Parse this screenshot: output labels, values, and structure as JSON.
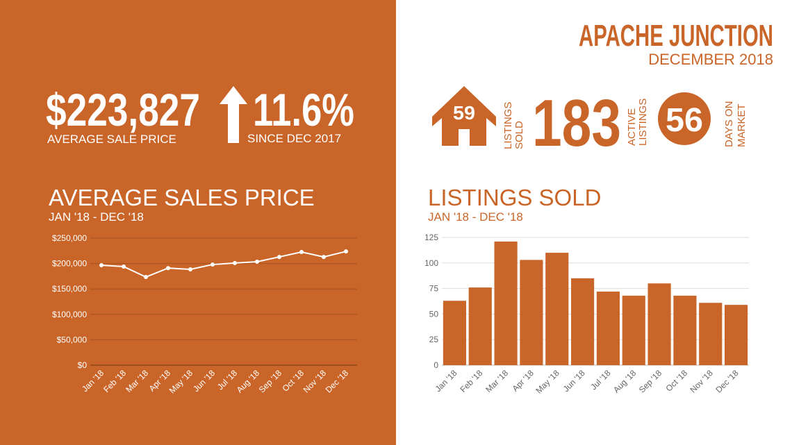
{
  "header": {
    "title": "APACHE JUNCTION",
    "subtitle": "DECEMBER 2018"
  },
  "stats": {
    "price": "$223,827",
    "price_label": "AVERAGE  SALE PRICE",
    "change": "11.6%",
    "change_label": "SINCE DEC 2017",
    "listings_sold": 59,
    "listings_sold_label": [
      "LISTINGS",
      "SOLD"
    ],
    "active": 183,
    "active_label": [
      "ACTIVE",
      "LISTINGS"
    ],
    "days": 56,
    "days_label": [
      "DAYS ON",
      "MARKET"
    ]
  },
  "chart_data": [
    {
      "type": "line",
      "title": "AVERAGE SALES PRICE",
      "subtitle": "JAN '18 - DEC '18",
      "color": "#ffffff",
      "grid": true,
      "categories": [
        "Jan '18",
        "Feb '18",
        "Mar '18",
        "Apr '18",
        "May '18",
        "Jun '18",
        "Jul '18",
        "Aug '18",
        "Sep '18",
        "Oct '18",
        "Nov '18",
        "Dec '18"
      ],
      "values": [
        196700,
        194000,
        173500,
        191000,
        188500,
        198000,
        201000,
        203500,
        213000,
        222700,
        213000,
        223827
      ],
      "ylim": [
        0,
        250000
      ],
      "yticks": [
        {
          "value": 0,
          "label": "$0"
        },
        {
          "value": 50000,
          "label": "$50,000"
        },
        {
          "value": 100000,
          "label": "$100,000"
        },
        {
          "value": 150000,
          "label": "$150,000"
        },
        {
          "value": 200000,
          "label": "$200,000"
        },
        {
          "value": 250000,
          "label": "$250,000"
        }
      ]
    },
    {
      "type": "bar",
      "title": "LISTINGS SOLD",
      "subtitle": "JAN '18 - DEC '18",
      "color": "#c96528",
      "grid": true,
      "categories": [
        "Jan '18",
        "Feb '18",
        "Mar '18",
        "Apr '18",
        "May '18",
        "Jun '18",
        "Jul '18",
        "Aug '18",
        "Sep '18",
        "Oct '18",
        "Nov '18",
        "Dec '18"
      ],
      "values": [
        63,
        76,
        121,
        103,
        110,
        85,
        72,
        68,
        80,
        68,
        61,
        59
      ],
      "ylim": [
        0,
        125
      ],
      "yticks": [
        0,
        25,
        50,
        75,
        100,
        125
      ]
    }
  ]
}
